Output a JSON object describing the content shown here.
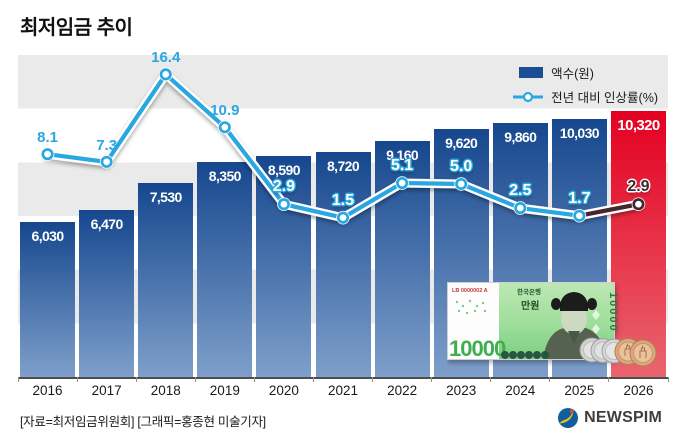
{
  "title": "최저임금 추이",
  "legend": {
    "bar_label": "액수(원)",
    "line_label": "전년 대비 인상률(%)"
  },
  "chart_data": {
    "type": "bar+line",
    "bar_series_name": "액수(원)",
    "line_series_name": "전년 대비 인상률(%)",
    "categories": [
      "2016",
      "2017",
      "2018",
      "2019",
      "2020",
      "2021",
      "2022",
      "2023",
      "2024",
      "2025",
      "2026"
    ],
    "points": [
      {
        "year": "2016",
        "wage": 6030,
        "wage_label": "6,030",
        "rate": 8.1,
        "rate_label": "8.1",
        "style": "blue",
        "emphasis": false
      },
      {
        "year": "2017",
        "wage": 6470,
        "wage_label": "6,470",
        "rate": 7.3,
        "rate_label": "7.3",
        "style": "blue",
        "emphasis": false
      },
      {
        "year": "2018",
        "wage": 7530,
        "wage_label": "7,530",
        "rate": 16.4,
        "rate_label": "16.4",
        "style": "blue",
        "emphasis": false
      },
      {
        "year": "2019",
        "wage": 8350,
        "wage_label": "8,350",
        "rate": 10.9,
        "rate_label": "10.9",
        "style": "blue",
        "emphasis": false
      },
      {
        "year": "2020",
        "wage": 8590,
        "wage_label": "8,590",
        "rate": 2.9,
        "rate_label": "2.9",
        "style": "outline",
        "emphasis": false
      },
      {
        "year": "2021",
        "wage": 8720,
        "wage_label": "8,720",
        "rate": 1.5,
        "rate_label": "1.5",
        "style": "outline",
        "emphasis": false
      },
      {
        "year": "2022",
        "wage": 9160,
        "wage_label": "9,160",
        "rate": 5.1,
        "rate_label": "5.1",
        "style": "outline",
        "emphasis": false
      },
      {
        "year": "2023",
        "wage": 9620,
        "wage_label": "9,620",
        "rate": 5.0,
        "rate_label": "5.0",
        "style": "outline",
        "emphasis": false
      },
      {
        "year": "2024",
        "wage": 9860,
        "wage_label": "9,860",
        "rate": 2.5,
        "rate_label": "2.5",
        "style": "outline",
        "emphasis": false
      },
      {
        "year": "2025",
        "wage": 10030,
        "wage_label": "10,030",
        "rate": 1.7,
        "rate_label": "1.7",
        "style": "outline",
        "emphasis": false
      },
      {
        "year": "2026",
        "wage": 10320,
        "wage_label": "10,320",
        "rate": 2.9,
        "rate_label": "2.9",
        "style": "final",
        "emphasis": true
      }
    ],
    "ylim_wage": [
      0,
      12500
    ],
    "ylim_rate": [
      0,
      18.4
    ],
    "highlight_category": "2026",
    "grid": "horizontal-bands",
    "legend_position": "top-right"
  },
  "banknote": {
    "serial": "LB 0000002 A",
    "bank_name": "한국은행",
    "denomination_kr": "만원",
    "denomination": "10000",
    "denomination_vertical": "10000"
  },
  "footer": {
    "credit": "[자료=최저임금위원회] [그래픽=홍종현 미술기자]",
    "brand": "NEWSPIM"
  },
  "colors": {
    "bar_top": "#16478e",
    "bar_bottom": "#7e9fca",
    "bar_red_top": "#e40020",
    "bar_red_bottom": "#ea6570",
    "line": "#2aa7e0",
    "line_final": "#45262e",
    "stripe": "#eaeaea",
    "legend_swatch": "#1b4e94"
  }
}
